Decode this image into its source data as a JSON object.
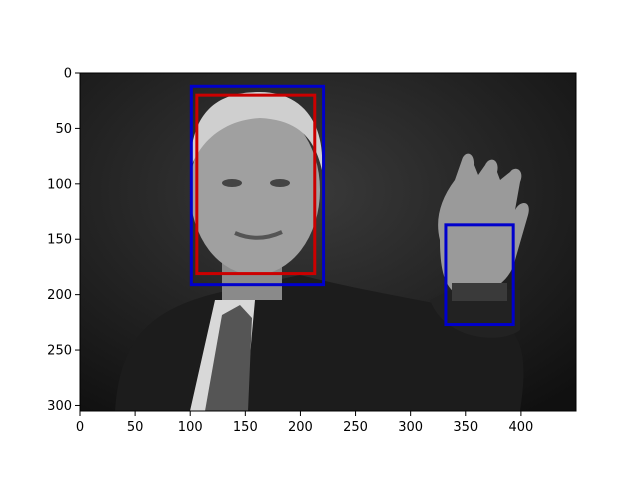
{
  "image": {
    "width": 450,
    "height": 305,
    "description_free": true
  },
  "axes": {
    "x_ticks": [
      0,
      50,
      100,
      150,
      200,
      250,
      300,
      350,
      400
    ],
    "y_ticks": [
      0,
      50,
      100,
      150,
      200,
      250,
      300
    ],
    "xlim": [
      0,
      450
    ],
    "ylim": [
      305,
      0
    ]
  },
  "boxes": [
    {
      "x0": 101,
      "y0": 12,
      "x1": 221,
      "y1": 191,
      "color": "#0000cc"
    },
    {
      "x0": 106,
      "y0": 20,
      "x1": 213,
      "y1": 181,
      "color": "#cc0000"
    },
    {
      "x0": 332,
      "y0": 137,
      "x1": 393,
      "y1": 227,
      "color": "#0000cc"
    }
  ]
}
